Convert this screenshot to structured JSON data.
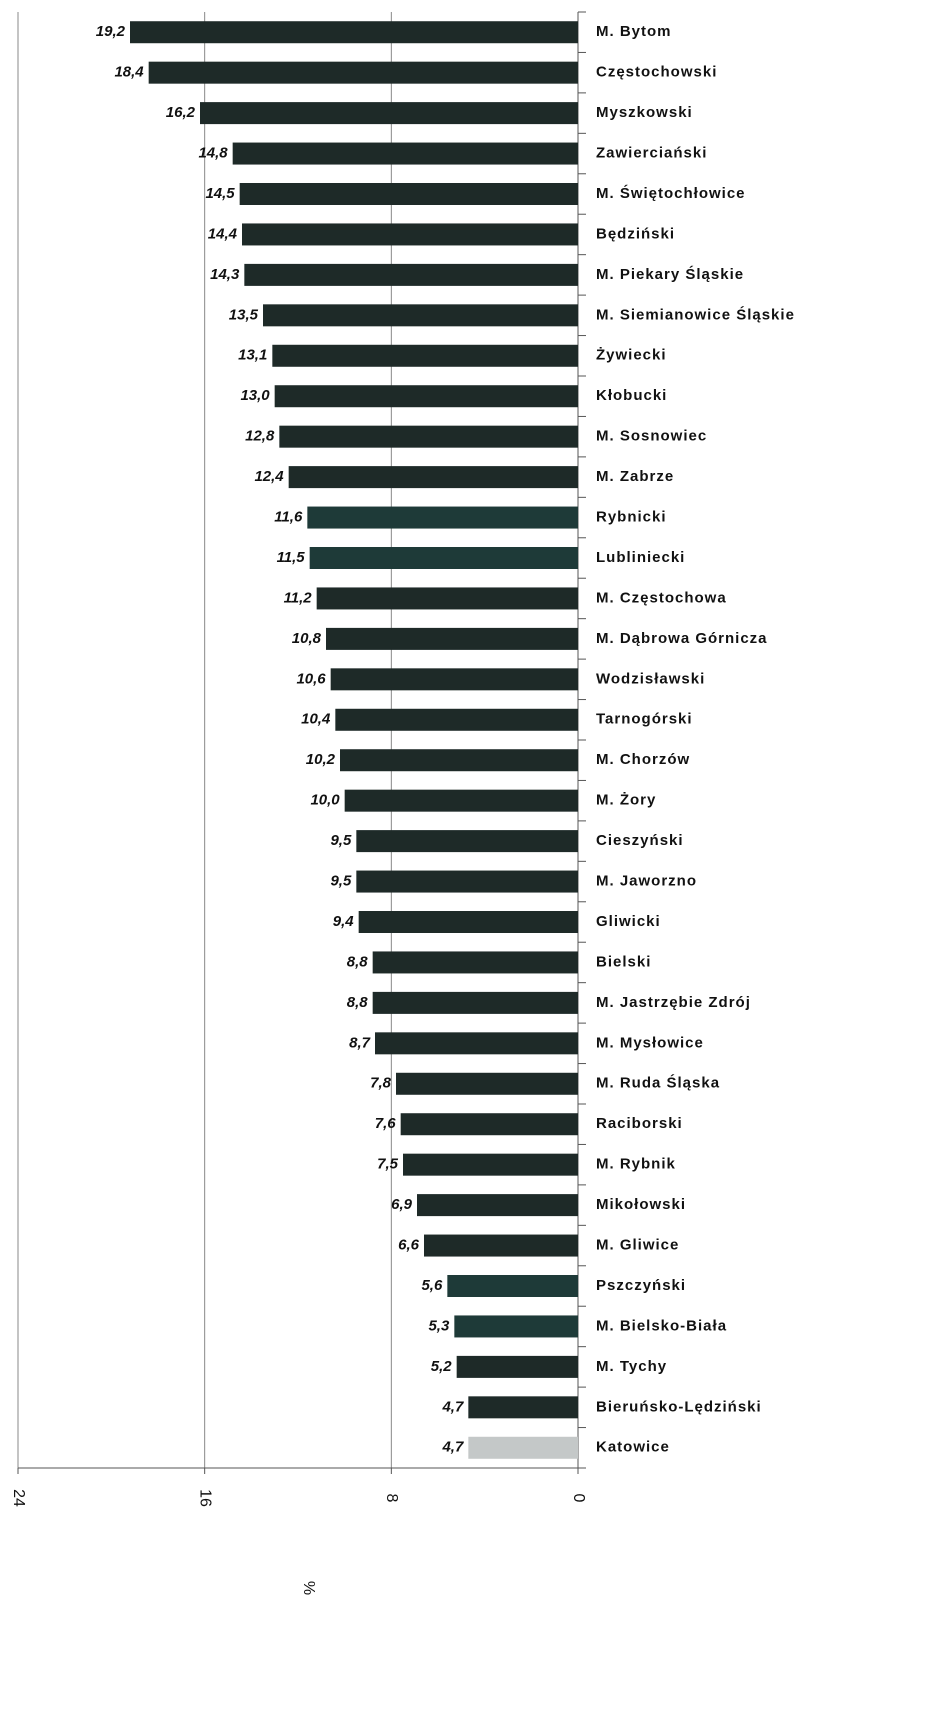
{
  "chart_data": {
    "type": "hbar",
    "x_label": "%",
    "categories": [
      "M. Bytom",
      "Częstochowski",
      "Myszkowski",
      "Zawierciański",
      "M. Świętochłowice",
      "Będziński",
      "M. Piekary Śląskie",
      "M. Siemianowice Śląskie",
      "Żywiecki",
      "Kłobucki",
      "M. Sosnowiec",
      "M. Zabrze",
      "Rybnicki",
      "Lubliniecki",
      "M. Częstochowa",
      "M. Dąbrowa Górnicza",
      "Wodzisławski",
      "Tarnogórski",
      "M. Chorzów",
      "M. Żory",
      "Cieszyński",
      "M. Jaworzno",
      "Gliwicki",
      "Bielski",
      "M. Jastrzębie Zdrój",
      "M. Mysłowice",
      "M. Ruda Śląska",
      "Raciborski",
      "M. Rybnik",
      "Mikołowski",
      "M. Gliwice",
      "Pszczyński",
      "M. Bielsko-Biała",
      "M. Tychy",
      "Bieruńsko-Lędziński",
      "Katowice"
    ],
    "values": [
      19.2,
      18.4,
      16.2,
      14.8,
      14.5,
      14.4,
      14.3,
      13.5,
      13.1,
      13.0,
      12.8,
      12.4,
      11.6,
      11.5,
      11.2,
      10.8,
      10.6,
      10.4,
      10.2,
      10.0,
      9.5,
      9.5,
      9.4,
      8.8,
      8.8,
      8.7,
      7.8,
      7.6,
      7.5,
      6.9,
      6.6,
      5.6,
      5.3,
      5.2,
      4.7,
      4.7
    ],
    "value_labels": [
      "19,2",
      "18,4",
      "16,2",
      "14,8",
      "14,5",
      "14,4",
      "14,3",
      "13,5",
      "13,1",
      "13,0",
      "12,8",
      "12,4",
      "11,6",
      "11,5",
      "11,2",
      "10,8",
      "10,6",
      "10,4",
      "10,2",
      "10,0",
      "9,5",
      "9,5",
      "9,4",
      "8,8",
      "8,8",
      "8,7",
      "7,8",
      "7,6",
      "7,5",
      "6,9",
      "6,6",
      "5,6",
      "5,3",
      "5,2",
      "4,7",
      "4,7"
    ],
    "colors": [
      "#1e2a28",
      "#1e2a28",
      "#1e2a28",
      "#1e2a28",
      "#1e2a28",
      "#1e2a28",
      "#1e2a28",
      "#1e2a28",
      "#1e2a28",
      "#1e2a28",
      "#1e2a28",
      "#1e2a28",
      "#1e3a38",
      "#1e3a38",
      "#1e2a28",
      "#1e2a28",
      "#1e2a28",
      "#1e2a28",
      "#1e2a28",
      "#1e2a28",
      "#1e2a28",
      "#1e2a28",
      "#1e2a28",
      "#1e2a28",
      "#1e2a28",
      "#1e2a28",
      "#1e2a28",
      "#1e2a28",
      "#1e2a28",
      "#1e2a28",
      "#1e2a28",
      "#1e3a38",
      "#1e3a38",
      "#1e2a28",
      "#1e2a28",
      "#c4c8c8"
    ],
    "xlim": [
      0,
      24
    ],
    "xticks": [
      0,
      8,
      16,
      24
    ],
    "x_reversed": true,
    "grid": true
  }
}
